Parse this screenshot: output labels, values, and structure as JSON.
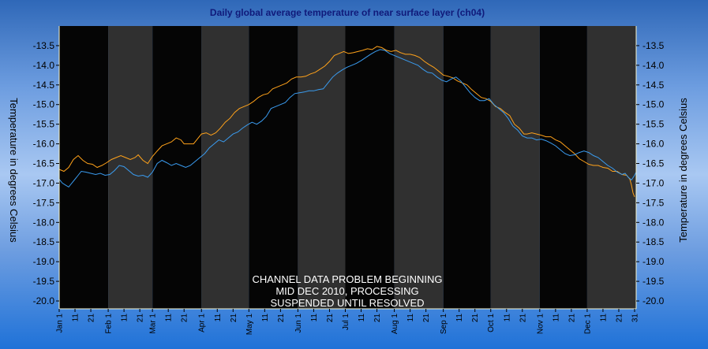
{
  "chart_data": {
    "type": "line",
    "title": "Daily global average temperature of near surface layer (ch04)",
    "ylabel_left": "Temperature in degrees Celsius",
    "ylabel_right": "Temperature in degrees Celsius",
    "ylim": [
      -20.2,
      -13.0
    ],
    "y_ticks": [
      -13.5,
      -14.0,
      -14.5,
      -15.0,
      -15.5,
      -16.0,
      -16.5,
      -17.0,
      -17.5,
      -18.0,
      -18.5,
      -19.0,
      -19.5,
      -20.0
    ],
    "y_tick_labels": [
      "-13.5",
      "-14.0",
      "-14.5",
      "-15.0",
      "-15.5",
      "-16.0",
      "-16.5",
      "-17.0",
      "-17.5",
      "-18.0",
      "-18.5",
      "-19.0",
      "-19.5",
      "-20.0"
    ],
    "x_day_range": [
      1,
      366
    ],
    "months": [
      "Jan",
      "Feb",
      "Mar",
      "Apr",
      "May",
      "Jun",
      "Jul",
      "Aug",
      "Sep",
      "Oct",
      "Nov",
      "Dec"
    ],
    "month_start_days": [
      1,
      32,
      60,
      91,
      121,
      152,
      182,
      213,
      244,
      274,
      305,
      335
    ],
    "x_tick_labels": [
      {
        "day": 1,
        "label": "Jan 1"
      },
      {
        "day": 11,
        "label": "11"
      },
      {
        "day": 21,
        "label": "21"
      },
      {
        "day": 32,
        "label": "Feb 1"
      },
      {
        "day": 42,
        "label": "11"
      },
      {
        "day": 52,
        "label": "21"
      },
      {
        "day": 60,
        "label": "Mar 1"
      },
      {
        "day": 70,
        "label": "11"
      },
      {
        "day": 80,
        "label": "21"
      },
      {
        "day": 91,
        "label": "Apr 1"
      },
      {
        "day": 101,
        "label": "11"
      },
      {
        "day": 111,
        "label": "21"
      },
      {
        "day": 121,
        "label": "May 1"
      },
      {
        "day": 131,
        "label": "11"
      },
      {
        "day": 141,
        "label": "21"
      },
      {
        "day": 152,
        "label": "Jun 1"
      },
      {
        "day": 162,
        "label": "11"
      },
      {
        "day": 172,
        "label": "21"
      },
      {
        "day": 182,
        "label": "Jul 1"
      },
      {
        "day": 192,
        "label": "11"
      },
      {
        "day": 202,
        "label": "21"
      },
      {
        "day": 213,
        "label": "Aug 1"
      },
      {
        "day": 223,
        "label": "11"
      },
      {
        "day": 233,
        "label": "21"
      },
      {
        "day": 244,
        "label": "Sep 1"
      },
      {
        "day": 254,
        "label": "11"
      },
      {
        "day": 264,
        "label": "21"
      },
      {
        "day": 274,
        "label": "Oct 1"
      },
      {
        "day": 284,
        "label": "11"
      },
      {
        "day": 294,
        "label": "21"
      },
      {
        "day": 305,
        "label": "Nov 1"
      },
      {
        "day": 315,
        "label": "11"
      },
      {
        "day": 325,
        "label": "21"
      },
      {
        "day": 335,
        "label": "Dec 1"
      },
      {
        "day": 345,
        "label": "11"
      },
      {
        "day": 355,
        "label": "21"
      },
      {
        "day": 365,
        "label": "31"
      }
    ],
    "annotation": [
      "CHANNEL DATA PROBLEM BEGINNING",
      "MID DEC 2010, PROCESSING",
      "SUSPENDED UNTIL RESOLVED"
    ],
    "grid": false,
    "series": [
      {
        "color": "#ffa21a",
        "points": [
          [
            1,
            -16.65
          ],
          [
            4,
            -16.7
          ],
          [
            7,
            -16.6
          ],
          [
            10,
            -16.4
          ],
          [
            13,
            -16.3
          ],
          [
            16,
            -16.42
          ],
          [
            19,
            -16.5
          ],
          [
            22,
            -16.52
          ],
          [
            25,
            -16.6
          ],
          [
            28,
            -16.55
          ],
          [
            31,
            -16.48
          ],
          [
            34,
            -16.4
          ],
          [
            37,
            -16.35
          ],
          [
            40,
            -16.3
          ],
          [
            43,
            -16.35
          ],
          [
            46,
            -16.4
          ],
          [
            49,
            -16.35
          ],
          [
            51,
            -16.28
          ],
          [
            54,
            -16.42
          ],
          [
            57,
            -16.5
          ],
          [
            60,
            -16.32
          ],
          [
            63,
            -16.18
          ],
          [
            66,
            -16.05
          ],
          [
            69,
            -16.0
          ],
          [
            72,
            -15.95
          ],
          [
            75,
            -15.85
          ],
          [
            78,
            -15.9
          ],
          [
            80,
            -16.0
          ],
          [
            83,
            -16.0
          ],
          [
            86,
            -16.0
          ],
          [
            89,
            -15.85
          ],
          [
            91,
            -15.75
          ],
          [
            94,
            -15.72
          ],
          [
            97,
            -15.78
          ],
          [
            100,
            -15.72
          ],
          [
            103,
            -15.6
          ],
          [
            106,
            -15.45
          ],
          [
            109,
            -15.35
          ],
          [
            112,
            -15.2
          ],
          [
            115,
            -15.1
          ],
          [
            118,
            -15.05
          ],
          [
            121,
            -15.0
          ],
          [
            124,
            -14.92
          ],
          [
            127,
            -14.82
          ],
          [
            130,
            -14.75
          ],
          [
            133,
            -14.72
          ],
          [
            136,
            -14.6
          ],
          [
            139,
            -14.55
          ],
          [
            142,
            -14.5
          ],
          [
            145,
            -14.45
          ],
          [
            148,
            -14.35
          ],
          [
            151,
            -14.3
          ],
          [
            154,
            -14.3
          ],
          [
            157,
            -14.28
          ],
          [
            160,
            -14.22
          ],
          [
            163,
            -14.18
          ],
          [
            166,
            -14.1
          ],
          [
            169,
            -14.02
          ],
          [
            172,
            -13.9
          ],
          [
            175,
            -13.75
          ],
          [
            178,
            -13.7
          ],
          [
            181,
            -13.65
          ],
          [
            184,
            -13.7
          ],
          [
            187,
            -13.68
          ],
          [
            190,
            -13.65
          ],
          [
            193,
            -13.62
          ],
          [
            196,
            -13.58
          ],
          [
            199,
            -13.6
          ],
          [
            202,
            -13.52
          ],
          [
            205,
            -13.55
          ],
          [
            208,
            -13.62
          ],
          [
            211,
            -13.65
          ],
          [
            214,
            -13.62
          ],
          [
            217,
            -13.68
          ],
          [
            220,
            -13.72
          ],
          [
            223,
            -13.72
          ],
          [
            226,
            -13.75
          ],
          [
            229,
            -13.8
          ],
          [
            232,
            -13.9
          ],
          [
            235,
            -13.98
          ],
          [
            238,
            -14.05
          ],
          [
            241,
            -14.15
          ],
          [
            244,
            -14.25
          ],
          [
            247,
            -14.28
          ],
          [
            250,
            -14.32
          ],
          [
            253,
            -14.4
          ],
          [
            256,
            -14.45
          ],
          [
            259,
            -14.5
          ],
          [
            262,
            -14.62
          ],
          [
            265,
            -14.72
          ],
          [
            268,
            -14.82
          ],
          [
            271,
            -14.85
          ],
          [
            274,
            -14.92
          ],
          [
            277,
            -15.05
          ],
          [
            280,
            -15.1
          ],
          [
            283,
            -15.2
          ],
          [
            286,
            -15.28
          ],
          [
            289,
            -15.5
          ],
          [
            292,
            -15.6
          ],
          [
            295,
            -15.75
          ],
          [
            297,
            -15.75
          ],
          [
            300,
            -15.72
          ],
          [
            303,
            -15.75
          ],
          [
            306,
            -15.78
          ],
          [
            309,
            -15.82
          ],
          [
            312,
            -15.82
          ],
          [
            315,
            -15.9
          ],
          [
            318,
            -15.95
          ],
          [
            321,
            -16.05
          ],
          [
            324,
            -16.15
          ],
          [
            327,
            -16.25
          ],
          [
            330,
            -16.38
          ],
          [
            333,
            -16.45
          ],
          [
            336,
            -16.52
          ],
          [
            339,
            -16.55
          ],
          [
            342,
            -16.55
          ],
          [
            345,
            -16.6
          ],
          [
            348,
            -16.62
          ],
          [
            351,
            -16.7
          ],
          [
            354,
            -16.7
          ],
          [
            357,
            -16.78
          ],
          [
            360,
            -16.8
          ],
          [
            362,
            -16.9
          ],
          [
            363,
            -17.05
          ],
          [
            364,
            -17.25
          ],
          [
            365,
            -17.35
          ]
        ]
      },
      {
        "color": "#3a9cf0",
        "points": [
          [
            1,
            -16.9
          ],
          [
            3,
            -17.0
          ],
          [
            5,
            -17.05
          ],
          [
            7,
            -17.1
          ],
          [
            9,
            -17.0
          ],
          [
            11,
            -16.9
          ],
          [
            13,
            -16.8
          ],
          [
            15,
            -16.7
          ],
          [
            18,
            -16.72
          ],
          [
            21,
            -16.75
          ],
          [
            24,
            -16.78
          ],
          [
            27,
            -16.75
          ],
          [
            30,
            -16.8
          ],
          [
            33,
            -16.78
          ],
          [
            36,
            -16.68
          ],
          [
            39,
            -16.55
          ],
          [
            42,
            -16.58
          ],
          [
            45,
            -16.68
          ],
          [
            48,
            -16.78
          ],
          [
            51,
            -16.82
          ],
          [
            54,
            -16.8
          ],
          [
            57,
            -16.85
          ],
          [
            60,
            -16.72
          ],
          [
            63,
            -16.5
          ],
          [
            66,
            -16.42
          ],
          [
            69,
            -16.48
          ],
          [
            72,
            -16.55
          ],
          [
            75,
            -16.5
          ],
          [
            78,
            -16.55
          ],
          [
            81,
            -16.6
          ],
          [
            84,
            -16.55
          ],
          [
            87,
            -16.45
          ],
          [
            90,
            -16.35
          ],
          [
            93,
            -16.25
          ],
          [
            96,
            -16.1
          ],
          [
            99,
            -16.0
          ],
          [
            102,
            -15.9
          ],
          [
            105,
            -15.95
          ],
          [
            108,
            -15.85
          ],
          [
            111,
            -15.75
          ],
          [
            114,
            -15.7
          ],
          [
            117,
            -15.6
          ],
          [
            120,
            -15.52
          ],
          [
            123,
            -15.45
          ],
          [
            126,
            -15.5
          ],
          [
            129,
            -15.42
          ],
          [
            132,
            -15.3
          ],
          [
            135,
            -15.1
          ],
          [
            138,
            -15.05
          ],
          [
            141,
            -15.0
          ],
          [
            144,
            -14.95
          ],
          [
            147,
            -14.82
          ],
          [
            150,
            -14.72
          ],
          [
            153,
            -14.7
          ],
          [
            156,
            -14.68
          ],
          [
            159,
            -14.65
          ],
          [
            162,
            -14.65
          ],
          [
            165,
            -14.62
          ],
          [
            168,
            -14.6
          ],
          [
            171,
            -14.45
          ],
          [
            174,
            -14.3
          ],
          [
            177,
            -14.2
          ],
          [
            180,
            -14.12
          ],
          [
            183,
            -14.05
          ],
          [
            186,
            -14.0
          ],
          [
            189,
            -13.95
          ],
          [
            192,
            -13.88
          ],
          [
            195,
            -13.8
          ],
          [
            198,
            -13.72
          ],
          [
            201,
            -13.65
          ],
          [
            204,
            -13.6
          ],
          [
            207,
            -13.62
          ],
          [
            210,
            -13.7
          ],
          [
            213,
            -13.75
          ],
          [
            216,
            -13.8
          ],
          [
            219,
            -13.85
          ],
          [
            222,
            -13.9
          ],
          [
            225,
            -13.95
          ],
          [
            228,
            -14.0
          ],
          [
            231,
            -14.1
          ],
          [
            234,
            -14.18
          ],
          [
            237,
            -14.2
          ],
          [
            240,
            -14.3
          ],
          [
            243,
            -14.38
          ],
          [
            246,
            -14.42
          ],
          [
            249,
            -14.35
          ],
          [
            252,
            -14.3
          ],
          [
            255,
            -14.4
          ],
          [
            258,
            -14.55
          ],
          [
            261,
            -14.7
          ],
          [
            264,
            -14.82
          ],
          [
            267,
            -14.9
          ],
          [
            270,
            -14.9
          ],
          [
            273,
            -14.85
          ],
          [
            276,
            -15.0
          ],
          [
            279,
            -15.1
          ],
          [
            282,
            -15.2
          ],
          [
            285,
            -15.35
          ],
          [
            288,
            -15.55
          ],
          [
            291,
            -15.65
          ],
          [
            294,
            -15.8
          ],
          [
            297,
            -15.85
          ],
          [
            300,
            -15.85
          ],
          [
            303,
            -15.9
          ],
          [
            306,
            -15.88
          ],
          [
            309,
            -15.92
          ],
          [
            312,
            -15.98
          ],
          [
            315,
            -16.05
          ],
          [
            318,
            -16.15
          ],
          [
            321,
            -16.25
          ],
          [
            324,
            -16.3
          ],
          [
            327,
            -16.28
          ],
          [
            330,
            -16.22
          ],
          [
            333,
            -16.18
          ],
          [
            336,
            -16.22
          ],
          [
            339,
            -16.3
          ],
          [
            342,
            -16.35
          ],
          [
            345,
            -16.45
          ],
          [
            348,
            -16.55
          ],
          [
            351,
            -16.62
          ],
          [
            354,
            -16.72
          ],
          [
            357,
            -16.78
          ],
          [
            359,
            -16.75
          ],
          [
            361,
            -16.85
          ],
          [
            363,
            -16.92
          ],
          [
            365,
            -16.8
          ],
          [
            366,
            -16.72
          ]
        ]
      }
    ]
  }
}
